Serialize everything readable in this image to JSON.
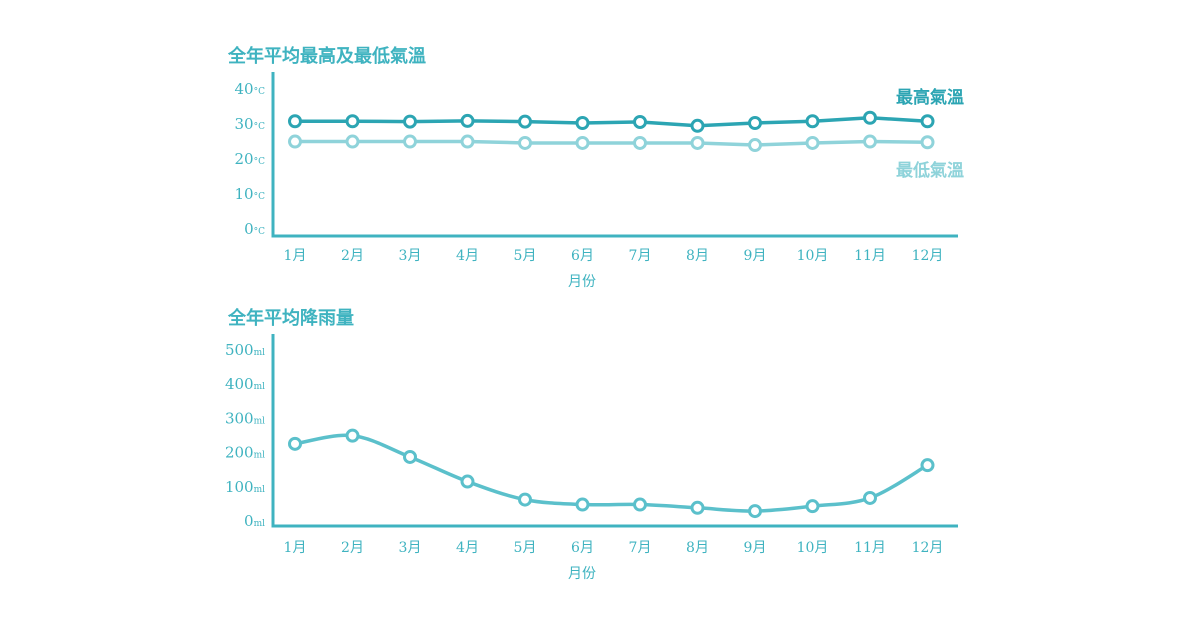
{
  "chart_data": [
    {
      "type": "line",
      "title": "全年平均最高及最低氣溫",
      "xlabel": "月份",
      "ylabel": "",
      "categories": [
        "1月",
        "2月",
        "3月",
        "4月",
        "5月",
        "6月",
        "7月",
        "8月",
        "9月",
        "10月",
        "11月",
        "12月"
      ],
      "yticks": [
        "40",
        "30",
        "20",
        "10",
        "0"
      ],
      "yunit": "°C",
      "ylim": [
        0,
        40
      ],
      "grid": false,
      "series": [
        {
          "name": "最高氣溫",
          "color": "#2ca5b3",
          "values": [
            30.5,
            30.5,
            30.4,
            30.6,
            30.4,
            30.0,
            30.3,
            29.2,
            30.0,
            30.5,
            31.5,
            30.5
          ]
        },
        {
          "name": "最低氣溫",
          "color": "#8fd3da",
          "values": [
            24.7,
            24.7,
            24.7,
            24.7,
            24.3,
            24.3,
            24.3,
            24.3,
            23.7,
            24.3,
            24.7,
            24.5
          ]
        }
      ]
    },
    {
      "type": "line",
      "title": "全年平均降雨量",
      "xlabel": "月份",
      "ylabel": "",
      "categories": [
        "1月",
        "2月",
        "3月",
        "4月",
        "5月",
        "6月",
        "7月",
        "8月",
        "9月",
        "10月",
        "11月",
        "12月"
      ],
      "yticks": [
        "500",
        "400",
        "300",
        "200",
        "100",
        "0"
      ],
      "yunit": "ml",
      "ylim": [
        0,
        500
      ],
      "grid": false,
      "series": [
        {
          "color": "#5bc0cb",
          "values": [
            220,
            245,
            180,
            105,
            50,
            35,
            35,
            25,
            15,
            30,
            55,
            155
          ]
        }
      ]
    }
  ]
}
